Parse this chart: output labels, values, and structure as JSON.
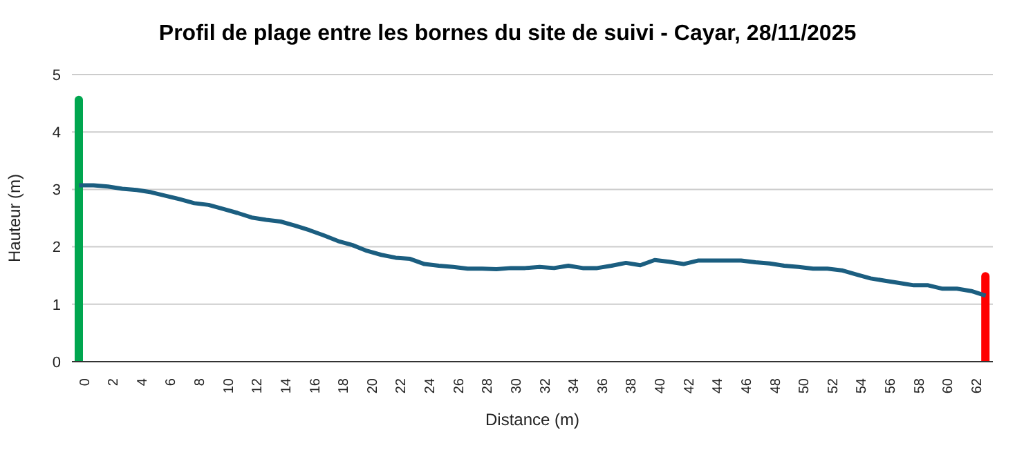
{
  "chart_data": {
    "type": "line",
    "title": "Profil de plage entre les bornes du site de suivi - Cayar, 28/11/2025",
    "xlabel": "Distance (m)",
    "ylabel": "Hauteur (m)",
    "x": [
      0,
      1,
      2,
      3,
      4,
      5,
      6,
      7,
      8,
      9,
      10,
      11,
      12,
      13,
      14,
      15,
      16,
      17,
      18,
      19,
      20,
      21,
      22,
      23,
      24,
      25,
      26,
      27,
      28,
      29,
      30,
      31,
      32,
      33,
      34,
      35,
      36,
      37,
      38,
      39,
      40,
      41,
      42,
      43,
      44,
      45,
      46,
      47,
      48,
      49,
      50,
      51,
      52,
      53,
      54,
      55,
      56,
      57,
      58,
      59,
      60,
      61,
      62,
      63
    ],
    "xlim": [
      -0.5,
      63.5
    ],
    "xticks": [
      0,
      2,
      4,
      6,
      8,
      10,
      12,
      14,
      16,
      18,
      20,
      22,
      24,
      26,
      28,
      30,
      32,
      34,
      36,
      38,
      40,
      42,
      44,
      46,
      48,
      50,
      52,
      54,
      56,
      58,
      60,
      62
    ],
    "series": [
      {
        "color": "#1b5e80",
        "values": [
          3.07,
          3.07,
          3.05,
          3.01,
          2.99,
          2.95,
          2.89,
          2.83,
          2.76,
          2.73,
          2.66,
          2.59,
          2.51,
          2.47,
          2.44,
          2.37,
          2.29,
          2.2,
          2.1,
          2.03,
          1.93,
          1.86,
          1.81,
          1.79,
          1.7,
          1.67,
          1.65,
          1.62,
          1.62,
          1.61,
          1.63,
          1.63,
          1.65,
          1.63,
          1.67,
          1.63,
          1.63,
          1.67,
          1.72,
          1.68,
          1.77,
          1.74,
          1.7,
          1.76,
          1.76,
          1.76,
          1.76,
          1.73,
          1.71,
          1.67,
          1.65,
          1.62,
          1.62,
          1.59,
          1.52,
          1.45,
          1.41,
          1.37,
          1.33,
          1.33,
          1.27,
          1.27,
          1.23,
          1.15
        ]
      },
      {
        "type": "bar",
        "colors": [
          "#00a64f",
          null,
          null,
          null,
          null,
          null,
          null,
          null,
          null,
          null,
          null,
          null,
          null,
          null,
          null,
          null,
          null,
          null,
          null,
          null,
          null,
          null,
          null,
          null,
          null,
          null,
          null,
          null,
          null,
          null,
          null,
          null,
          null,
          null,
          null,
          null,
          null,
          null,
          null,
          null,
          null,
          null,
          null,
          null,
          null,
          null,
          null,
          null,
          null,
          null,
          null,
          null,
          null,
          null,
          null,
          null,
          null,
          null,
          null,
          null,
          null,
          null,
          null,
          "#ff0000"
        ],
        "values": [
          4.63,
          null,
          null,
          null,
          null,
          null,
          null,
          null,
          null,
          null,
          null,
          null,
          null,
          null,
          null,
          null,
          null,
          null,
          null,
          null,
          null,
          null,
          null,
          null,
          null,
          null,
          null,
          null,
          null,
          null,
          null,
          null,
          null,
          null,
          null,
          null,
          null,
          null,
          null,
          null,
          null,
          null,
          null,
          null,
          null,
          null,
          null,
          null,
          null,
          null,
          null,
          null,
          null,
          null,
          null,
          null,
          null,
          null,
          null,
          null,
          null,
          null,
          null,
          1.56
        ]
      }
    ],
    "ylim": [
      0,
      5
    ],
    "yticks": [
      0,
      1,
      2,
      3,
      4,
      5
    ],
    "grid": "y",
    "legend": false,
    "marker": "none",
    "line_style": "solid"
  }
}
